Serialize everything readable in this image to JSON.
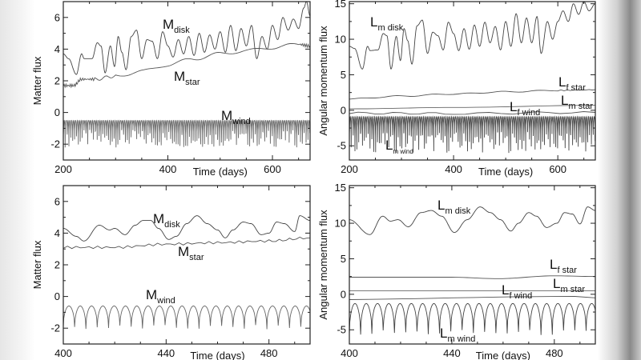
{
  "chart_data": [
    {
      "type": "line",
      "panel": "top-left",
      "xlabel": "Time (days)",
      "ylabel": "Matter flux",
      "xlim": [
        200,
        672
      ],
      "ylim": [
        -3,
        7
      ],
      "xticks": [
        200,
        400,
        600
      ],
      "yticks": [
        -2,
        0,
        2,
        4,
        6
      ],
      "grid": false,
      "series": [
        {
          "name": "M",
          "sub": "disk",
          "x": [
            200,
            210,
            225,
            235,
            240,
            255,
            265,
            272,
            280,
            290,
            298,
            305,
            312,
            320,
            330,
            340,
            350,
            360,
            370,
            380,
            390,
            400,
            410,
            420,
            430,
            440,
            450,
            460,
            470,
            480,
            490,
            500,
            510,
            520,
            530,
            540,
            550,
            560,
            570,
            580,
            590,
            600,
            610,
            620,
            630,
            640,
            650,
            660,
            665,
            672
          ],
          "y": [
            3.7,
            3.4,
            2.4,
            3.7,
            3.4,
            3.4,
            4.4,
            4.2,
            2.5,
            4.2,
            2.9,
            4.8,
            3.8,
            2.7,
            4.8,
            5.2,
            3.4,
            4.6,
            4.5,
            3.4,
            5.1,
            4.2,
            3.5,
            4.6,
            3.7,
            4.8,
            3.6,
            5.0,
            3.8,
            4.9,
            4.0,
            5.1,
            3.8,
            5.5,
            3.9,
            5.3,
            4.2,
            5.5,
            3.4,
            4.8,
            4.0,
            5.5,
            4.6,
            6.0,
            5.2,
            5.9,
            5.3,
            6.6,
            7.0,
            6.1
          ]
        },
        {
          "name": "M",
          "sub": "star",
          "x": [
            200,
            220,
            235,
            260,
            300,
            350,
            400,
            450,
            500,
            550,
            600,
            650,
            672
          ],
          "y": [
            1.7,
            1.7,
            2.1,
            2.1,
            2.3,
            2.6,
            3.0,
            3.4,
            3.7,
            3.9,
            4.1,
            4.3,
            4.2
          ],
          "wiggle": 0.1
        },
        {
          "name": "M",
          "sub": "wind",
          "oscillation": {
            "x_start": 200,
            "x_end": 672,
            "period": 3.6,
            "peak": -0.5,
            "trough_min": -2.2,
            "trough_max": -1.1
          }
        }
      ]
    },
    {
      "type": "line",
      "panel": "top-right",
      "xlabel": "Time (days)",
      "ylabel": "Angular momentum flux",
      "xlim": [
        200,
        672
      ],
      "ylim": [
        -7,
        15.3
      ],
      "xticks": [
        200,
        400,
        600
      ],
      "yticks": [
        -5,
        0,
        5,
        10,
        15
      ],
      "grid": false,
      "series": [
        {
          "name": "L",
          "sub": "m disk",
          "x": [
            200,
            210,
            225,
            235,
            240,
            255,
            265,
            272,
            280,
            290,
            298,
            305,
            312,
            320,
            330,
            340,
            350,
            360,
            370,
            380,
            390,
            400,
            410,
            420,
            430,
            440,
            450,
            460,
            470,
            480,
            490,
            500,
            510,
            520,
            530,
            540,
            550,
            560,
            568,
            580,
            590,
            600,
            610,
            620,
            630,
            640,
            650,
            660,
            672
          ],
          "y": [
            9.0,
            8.7,
            5.8,
            9.0,
            8.4,
            8.5,
            10.8,
            10.5,
            5.8,
            10.4,
            7.0,
            11.5,
            9.8,
            6.5,
            11.9,
            12.7,
            8.0,
            11.0,
            10.5,
            8.5,
            12.4,
            10.8,
            8.4,
            11.5,
            8.6,
            12.0,
            9.0,
            12.4,
            9.5,
            11.8,
            8.5,
            12.5,
            9.0,
            13.6,
            9.5,
            13.0,
            9.5,
            13.2,
            8.0,
            12.5,
            10.0,
            12.5,
            14.0,
            12.5,
            15.0,
            13.5,
            15.3,
            14.0,
            15.0
          ]
        },
        {
          "name": "L",
          "sub": "f star",
          "x": [
            200,
            300,
            400,
            500,
            600,
            672
          ],
          "y": [
            1.6,
            2.0,
            2.3,
            2.6,
            2.8,
            2.9
          ],
          "wiggle": 0.08
        },
        {
          "name": "L",
          "sub": "m star",
          "x": [
            200,
            400,
            672
          ],
          "y": [
            0.2,
            0.4,
            0.7
          ]
        },
        {
          "name": "L",
          "sub": "f wind",
          "x": [
            200,
            400,
            672
          ],
          "y": [
            -0.4,
            -0.45,
            -0.3
          ],
          "wiggle": 0.15
        },
        {
          "name": "L",
          "sub": "m wind",
          "oscillation": {
            "x_start": 200,
            "x_end": 672,
            "period": 3.6,
            "peak": -0.9,
            "trough_min": -6.0,
            "trough_max": -3.0
          }
        }
      ]
    },
    {
      "type": "line",
      "panel": "bottom-left",
      "xlabel": "Time (days)",
      "ylabel": "Matter flux",
      "xlim": [
        400,
        496
      ],
      "ylim": [
        -3,
        7
      ],
      "xticks": [
        400,
        440,
        480
      ],
      "yticks": [
        -2,
        0,
        2,
        4,
        6
      ],
      "grid": false,
      "series": [
        {
          "name": "M",
          "sub": "disk",
          "x": [
            400,
            405,
            408,
            414,
            418,
            420,
            424,
            428,
            431,
            434,
            437,
            441,
            444,
            448,
            452,
            456,
            460,
            463,
            466,
            470,
            473,
            477,
            480,
            483,
            486,
            490,
            492,
            496
          ],
          "y": [
            4.3,
            3.8,
            3.5,
            4.5,
            4.2,
            4.3,
            3.9,
            4.5,
            4.8,
            4.8,
            4.3,
            3.6,
            3.8,
            4.6,
            5.1,
            4.6,
            4.2,
            3.7,
            4.2,
            4.7,
            4.6,
            3.9,
            4.0,
            4.7,
            4.6,
            4.1,
            5.1,
            4.8
          ]
        },
        {
          "name": "M",
          "sub": "star",
          "x": [
            400,
            420,
            440,
            460,
            480,
            496
          ],
          "y": [
            3.1,
            3.1,
            3.3,
            3.4,
            3.5,
            3.7
          ],
          "wiggle": 0.08
        },
        {
          "name": "M",
          "sub": "wind",
          "oscillation": {
            "x_start": 400,
            "x_end": 496,
            "period": 4.4,
            "peak": -0.6,
            "trough_min": -2.1,
            "trough_max": -1.8
          }
        }
      ]
    },
    {
      "type": "line",
      "panel": "bottom-right",
      "xlabel": "Time (days)",
      "ylabel": "Angular momentum flux",
      "xlim": [
        400,
        496
      ],
      "ylim": [
        -7,
        15.3
      ],
      "xticks": [
        400,
        440,
        480
      ],
      "yticks": [
        -5,
        0,
        5,
        10,
        15
      ],
      "grid": false,
      "series": [
        {
          "name": "L",
          "sub": "m disk",
          "x": [
            400,
            408,
            413,
            416,
            419,
            423,
            428,
            432,
            436,
            441,
            446,
            451,
            455,
            459,
            463,
            466,
            470,
            473,
            477,
            481,
            484,
            487,
            490,
            493,
            496
          ],
          "y": [
            10.5,
            8.4,
            11.0,
            10.3,
            10.5,
            9.5,
            11.5,
            11.8,
            11.0,
            8.7,
            10.5,
            12.3,
            11.5,
            10.5,
            8.9,
            10.0,
            11.5,
            11.0,
            9.4,
            10.0,
            11.5,
            11.3,
            9.9,
            12.3,
            11.8
          ]
        },
        {
          "name": "L",
          "sub": "f star",
          "x": [
            400,
            440,
            458,
            480,
            496
          ],
          "y": [
            2.4,
            2.4,
            2.2,
            2.6,
            2.5
          ]
        },
        {
          "name": "L",
          "sub": "m star",
          "x": [
            400,
            496
          ],
          "y": [
            0.5,
            0.5
          ]
        },
        {
          "name": "L",
          "sub": "f wind",
          "x": [
            400,
            496
          ],
          "y": [
            -0.6,
            -0.5
          ],
          "wiggle": 0.2
        },
        {
          "name": "L",
          "sub": "m wind",
          "oscillation": {
            "x_start": 400,
            "x_end": 496,
            "period": 4.4,
            "peak": -1.3,
            "trough_min": -5.8,
            "trough_max": -5.0
          }
        }
      ]
    }
  ]
}
